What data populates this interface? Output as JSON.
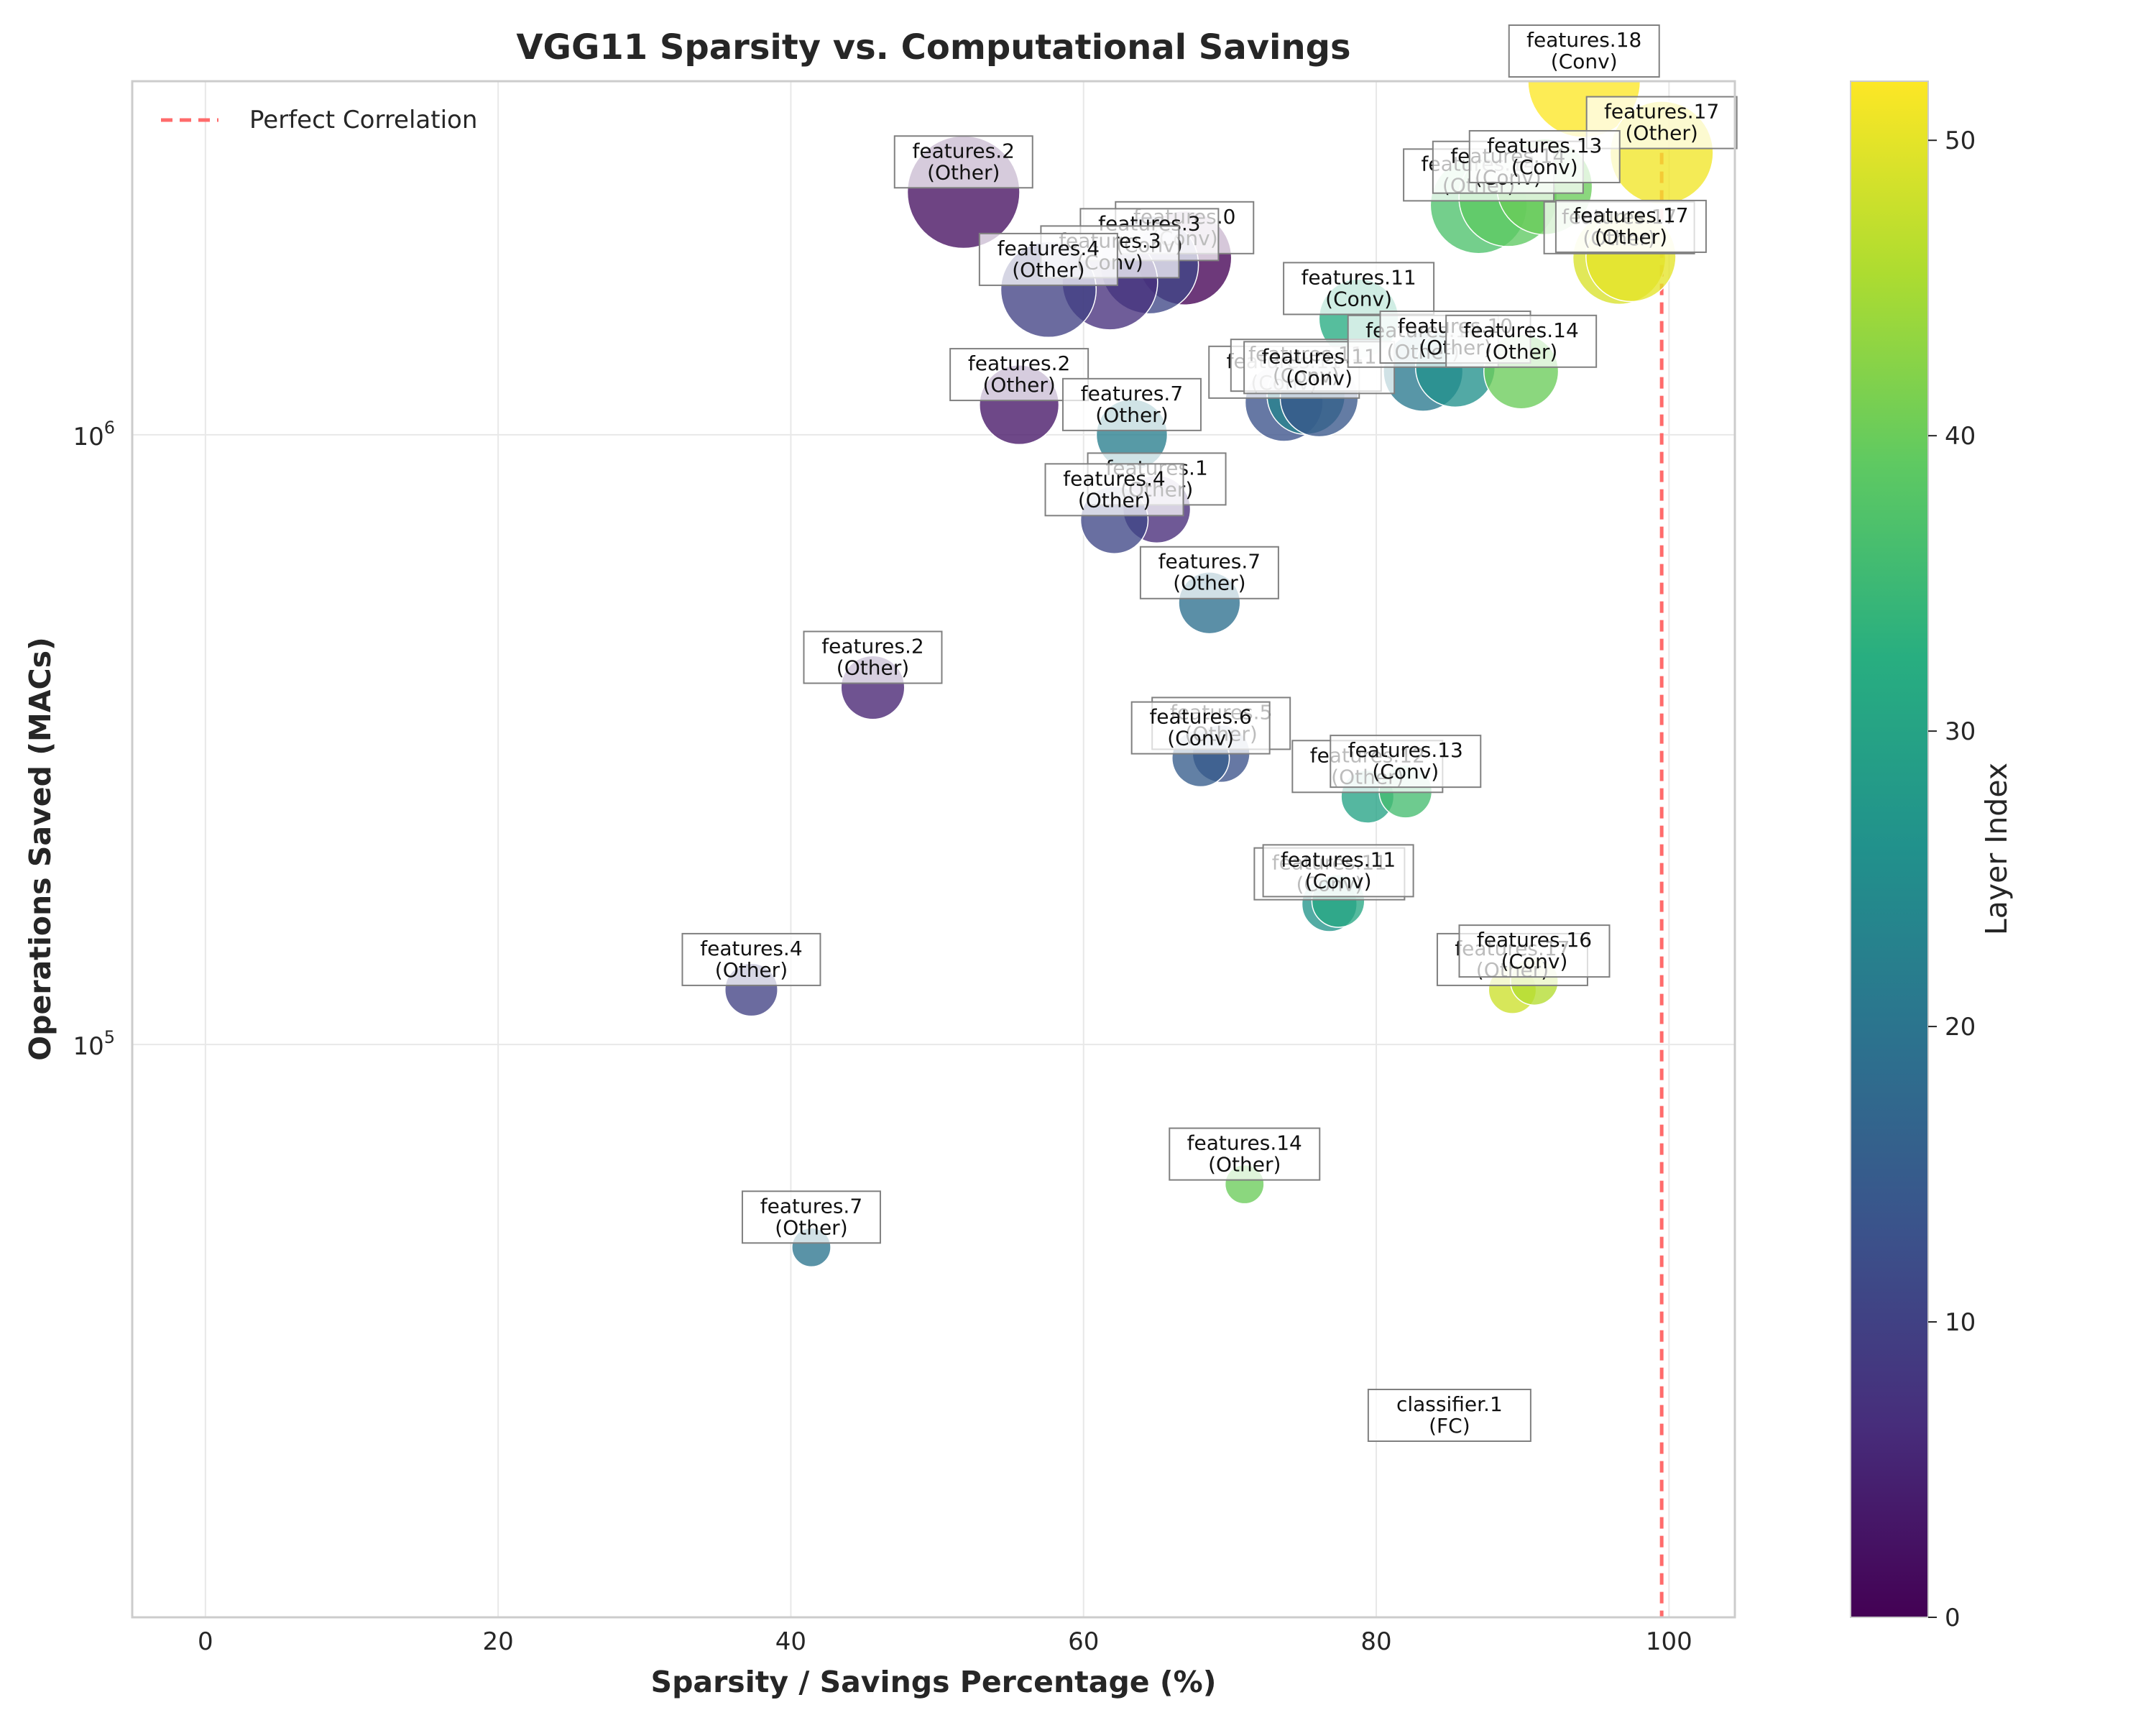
{
  "chart_data": {
    "type": "scatter",
    "title": "VGG11 Sparsity vs. Computational Savings",
    "xlabel": "Sparsity / Savings Percentage (%)",
    "ylabel": "Operations Saved (MACs)",
    "x_ticks": [
      "0",
      "20",
      "40",
      "60",
      "80",
      "100"
    ],
    "x_tick_values": [
      0,
      20,
      40,
      60,
      80,
      100
    ],
    "y_ticks": [
      {
        "base": "10",
        "exp": "5",
        "value": 100000
      },
      {
        "base": "10",
        "exp": "6",
        "value": 1000000
      }
    ],
    "xlim": [
      -5,
      104.5
    ],
    "ylim": [
      11500,
      3800000
    ],
    "y_scale": "log",
    "grid": true,
    "legend": {
      "position": "top-left",
      "entries": [
        {
          "label": "Perfect Correlation",
          "style": "dashed",
          "color": "#ff6b6b"
        }
      ]
    },
    "reference_line": {
      "x": 99.5,
      "y_from": 2900000,
      "y_to": 11500,
      "color": "#ff6b6b"
    },
    "colorbar": {
      "label": "Layer Index",
      "min": 0,
      "max": 52,
      "ticks": [
        "0",
        "10",
        "20",
        "30",
        "40",
        "50"
      ],
      "tick_values": [
        0,
        10,
        20,
        30,
        40,
        50
      ],
      "colormap": "viridis"
    },
    "points": [
      {
        "x": 51.8,
        "y": 2500000,
        "label": "features.2",
        "type": "(Other)",
        "layer": 2,
        "size": 5.0
      },
      {
        "x": 94.2,
        "y": 3800000,
        "label": "features.18",
        "type": "(Conv)",
        "layer": 52,
        "size": 5.0
      },
      {
        "x": 99.5,
        "y": 2900000,
        "label": "features.17",
        "type": "(Other)",
        "layer": 51,
        "size": 4.2
      },
      {
        "x": 66.9,
        "y": 1950000,
        "label": "features.0",
        "type": "(Conv)",
        "layer": 0,
        "size": 3.5
      },
      {
        "x": 64.5,
        "y": 1900000,
        "label": "features.3",
        "type": "(Conv)",
        "layer": 11,
        "size": 3.8
      },
      {
        "x": 61.8,
        "y": 1780000,
        "label": "features.3",
        "type": "(Conv)",
        "layer": 7,
        "size": 3.6
      },
      {
        "x": 57.6,
        "y": 1730000,
        "label": "features.4",
        "type": "(Other)",
        "layer": 10,
        "size": 3.6
      },
      {
        "x": 87.0,
        "y": 2380000,
        "label": "features.14",
        "type": "(Other)",
        "layer": 37,
        "size": 3.7
      },
      {
        "x": 89.0,
        "y": 2450000,
        "label": "features.14",
        "type": "(Conv)",
        "layer": 39,
        "size": 3.8
      },
      {
        "x": 91.5,
        "y": 2550000,
        "label": "features.13",
        "type": "(Conv)",
        "layer": 40,
        "size": 3.6
      },
      {
        "x": 96.6,
        "y": 1950000,
        "label": "features.17",
        "type": "(Other)",
        "layer": 49,
        "size": 3.4
      },
      {
        "x": 97.4,
        "y": 1960000,
        "label": "features.17",
        "type": "(Other)",
        "layer": 50,
        "size": 3.2
      },
      {
        "x": 78.8,
        "y": 1550000,
        "label": "features.11",
        "type": "(Conv)",
        "layer": 32,
        "size": 2.5
      },
      {
        "x": 55.6,
        "y": 1120000,
        "label": "features.2",
        "type": "(Other)",
        "layer": 3,
        "size": 2.5
      },
      {
        "x": 73.7,
        "y": 1130000,
        "label": "features.11",
        "type": "(Conv)",
        "layer": 13,
        "size": 2.4
      },
      {
        "x": 75.2,
        "y": 1160000,
        "label": "features.11",
        "type": "(Conv)",
        "layer": 23,
        "size": 2.4
      },
      {
        "x": 76.1,
        "y": 1150000,
        "label": "features.11",
        "type": "(Conv)",
        "layer": 14,
        "size": 2.4
      },
      {
        "x": 83.2,
        "y": 1270000,
        "label": "features.10",
        "type": "(Other)",
        "layer": 21,
        "size": 2.5
      },
      {
        "x": 85.4,
        "y": 1290000,
        "label": "features.10",
        "type": "(Other)",
        "layer": 26,
        "size": 2.5
      },
      {
        "x": 89.9,
        "y": 1270000,
        "label": "features.14",
        "type": "(Other)",
        "layer": 40,
        "size": 2.2
      },
      {
        "x": 63.3,
        "y": 1000000,
        "label": "features.7",
        "type": "(Other)",
        "layer": 22,
        "size": 2.0
      },
      {
        "x": 65.0,
        "y": 755000,
        "label": "features.1",
        "type": "(Other)",
        "layer": 6,
        "size": 1.8
      },
      {
        "x": 62.1,
        "y": 725000,
        "label": "features.4",
        "type": "(Other)",
        "layer": 11,
        "size": 1.8
      },
      {
        "x": 68.6,
        "y": 530000,
        "label": "features.7",
        "type": "(Other)",
        "layer": 19,
        "size": 1.5
      },
      {
        "x": 45.6,
        "y": 385000,
        "label": "features.2",
        "type": "(Other)",
        "layer": 5,
        "size": 1.6
      },
      {
        "x": 69.4,
        "y": 300000,
        "label": "features.5",
        "type": "(Other)",
        "layer": 13,
        "size": 1.3
      },
      {
        "x": 68.0,
        "y": 295000,
        "label": "features.6",
        "type": "(Conv)",
        "layer": 15,
        "size": 1.3
      },
      {
        "x": 79.4,
        "y": 255000,
        "label": "features.12",
        "type": "(Other)",
        "layer": 30,
        "size": 1.1
      },
      {
        "x": 82.0,
        "y": 260000,
        "label": "features.13",
        "type": "(Conv)",
        "layer": 36,
        "size": 1.1
      },
      {
        "x": 76.8,
        "y": 170000,
        "label": "features.11",
        "type": "(Conv)",
        "layer": 27,
        "size": 1.2
      },
      {
        "x": 77.4,
        "y": 172000,
        "label": "features.11",
        "type": "(Conv)",
        "layer": 31,
        "size": 1.1
      },
      {
        "x": 37.3,
        "y": 123000,
        "label": "features.4",
        "type": "(Other)",
        "layer": 10,
        "size": 1.1
      },
      {
        "x": 89.3,
        "y": 123000,
        "label": "features.17",
        "type": "(Other)",
        "layer": 48,
        "size": 0.9
      },
      {
        "x": 90.8,
        "y": 127000,
        "label": "features.16",
        "type": "(Conv)",
        "layer": 46,
        "size": 0.9
      },
      {
        "x": 71.0,
        "y": 59000,
        "label": "features.14",
        "type": "(Other)",
        "layer": 40,
        "size": 0.6
      },
      {
        "x": 41.4,
        "y": 46500,
        "label": "features.7",
        "type": "(Other)",
        "layer": 20,
        "size": 0.6
      },
      {
        "x": 85.0,
        "y": 22000,
        "label": "classifier.1",
        "type": "(FC)",
        "layer": 0,
        "size": 0.0
      }
    ]
  }
}
